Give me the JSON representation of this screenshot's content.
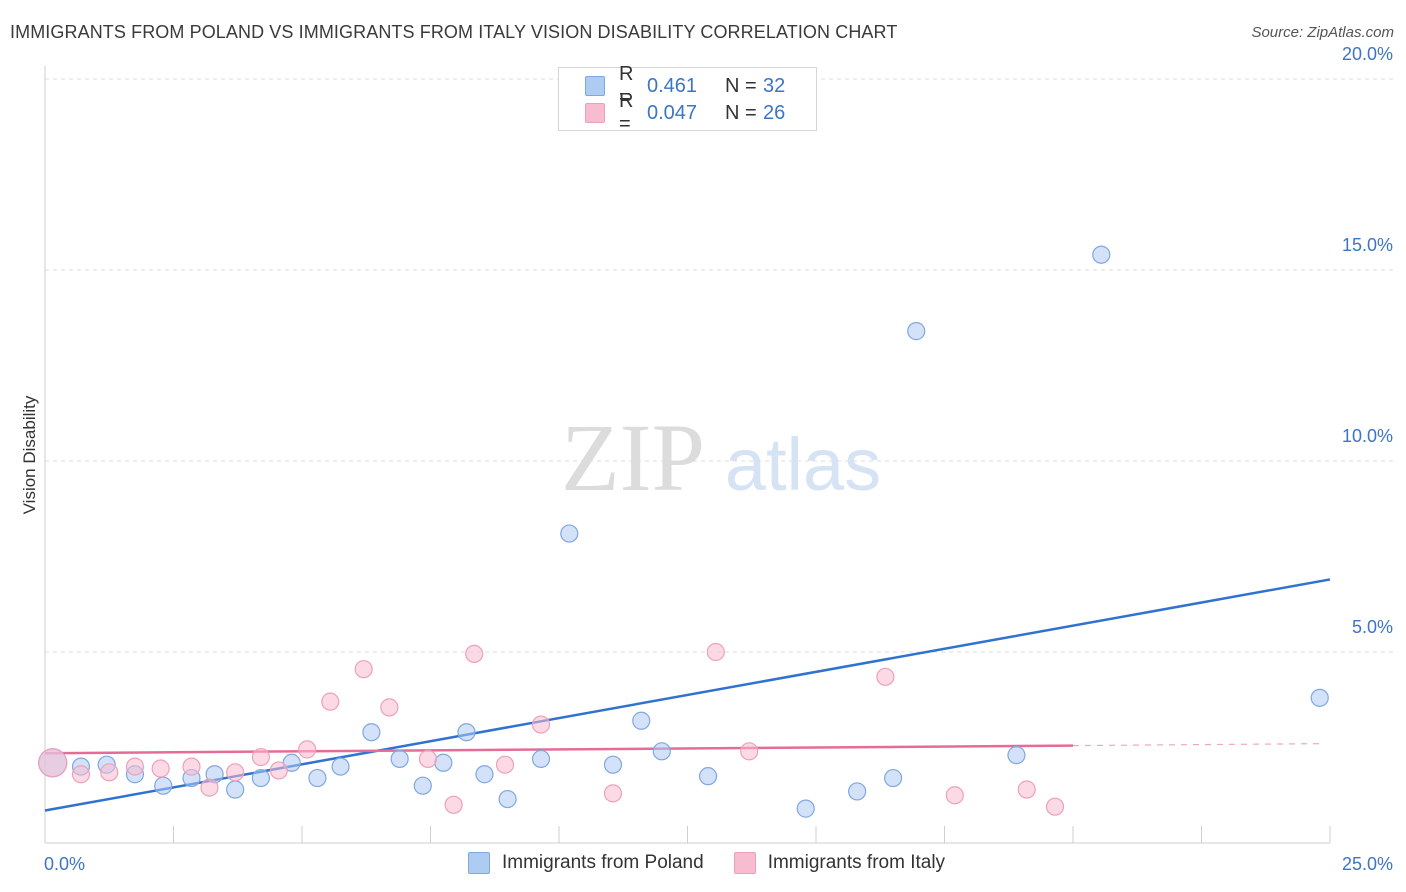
{
  "title": "IMMIGRANTS FROM POLAND VS IMMIGRANTS FROM ITALY VISION DISABILITY CORRELATION CHART",
  "source": "Source: ZipAtlas.com",
  "watermark": {
    "part1": "ZIP",
    "part2": "atlas"
  },
  "legend": {
    "rows": [
      {
        "r_label": "R =",
        "r_value": "0.461",
        "n_label": "N =",
        "n_value": "32",
        "color": "#aecbf2"
      },
      {
        "r_label": "R =",
        "r_value": "0.047",
        "n_label": "N =",
        "n_value": "26",
        "color": "#f7bcd0"
      }
    ]
  },
  "bottom_legend": [
    {
      "label": "Immigrants from Poland",
      "color": "#aecbf2"
    },
    {
      "label": "Immigrants from Italy",
      "color": "#f7bcd0"
    }
  ],
  "chart_data": {
    "type": "scatter",
    "title": "IMMIGRANTS FROM POLAND VS IMMIGRANTS FROM ITALY VISION DISABILITY CORRELATION CHART",
    "xlabel": "",
    "ylabel": "Vision Disability",
    "xlim": [
      0,
      25
    ],
    "ylim": [
      0,
      20.5
    ],
    "x_tick_labels": [
      "0.0%",
      "25.0%"
    ],
    "y_ticks": [
      5,
      10,
      15,
      20
    ],
    "y_tick_labels": [
      "5.0%",
      "10.0%",
      "15.0%",
      "20.0%"
    ],
    "grid": true,
    "legend_position": "top-center",
    "series": [
      {
        "name": "Immigrants from Poland",
        "color": "#aecbf2",
        "line_color": "#2f72d0",
        "points": [
          [
            0.15,
            2.1
          ],
          [
            0.7,
            2.0
          ],
          [
            1.2,
            2.05
          ],
          [
            1.75,
            1.8
          ],
          [
            2.3,
            1.5
          ],
          [
            2.85,
            1.7
          ],
          [
            3.3,
            1.8
          ],
          [
            3.7,
            1.4
          ],
          [
            4.2,
            1.7
          ],
          [
            4.8,
            2.1
          ],
          [
            5.3,
            1.7
          ],
          [
            5.75,
            2.0
          ],
          [
            6.35,
            2.9
          ],
          [
            6.9,
            2.2
          ],
          [
            7.35,
            1.5
          ],
          [
            7.75,
            2.1
          ],
          [
            8.2,
            2.9
          ],
          [
            8.55,
            1.8
          ],
          [
            9.0,
            1.15
          ],
          [
            9.65,
            2.2
          ],
          [
            10.2,
            8.1
          ],
          [
            11.05,
            2.05
          ],
          [
            11.6,
            3.2
          ],
          [
            12.0,
            2.4
          ],
          [
            12.9,
            1.75
          ],
          [
            14.8,
            0.9
          ],
          [
            15.8,
            1.35
          ],
          [
            16.5,
            1.7
          ],
          [
            16.95,
            13.4
          ],
          [
            18.9,
            2.3
          ],
          [
            20.55,
            15.4
          ],
          [
            24.8,
            3.8
          ]
        ],
        "trend": {
          "x": [
            0.0,
            25.0
          ],
          "y": [
            0.85,
            6.9
          ]
        }
      },
      {
        "name": "Immigrants from Italy",
        "color": "#f7bcd0",
        "line_color": "#e66c98",
        "points": [
          [
            0.15,
            2.1
          ],
          [
            0.7,
            1.8
          ],
          [
            1.25,
            1.85
          ],
          [
            1.75,
            2.0
          ],
          [
            2.25,
            1.95
          ],
          [
            2.85,
            2.0
          ],
          [
            3.2,
            1.45
          ],
          [
            3.7,
            1.85
          ],
          [
            4.2,
            2.25
          ],
          [
            4.55,
            1.9
          ],
          [
            5.1,
            2.45
          ],
          [
            5.55,
            3.7
          ],
          [
            6.2,
            4.55
          ],
          [
            6.7,
            3.55
          ],
          [
            7.45,
            2.2
          ],
          [
            7.95,
            1.0
          ],
          [
            8.35,
            4.95
          ],
          [
            8.95,
            2.05
          ],
          [
            9.65,
            3.1
          ],
          [
            11.05,
            1.3
          ],
          [
            13.05,
            5.0
          ],
          [
            13.7,
            2.4
          ],
          [
            16.35,
            4.35
          ],
          [
            17.7,
            1.25
          ],
          [
            19.1,
            1.4
          ],
          [
            19.65,
            0.95
          ]
        ],
        "trend": {
          "x": [
            0.0,
            20.0
          ],
          "y": [
            2.35,
            2.55
          ]
        },
        "trend_extension": {
          "x": [
            20.0,
            24.8
          ],
          "y": [
            2.55,
            2.6
          ]
        }
      }
    ]
  }
}
